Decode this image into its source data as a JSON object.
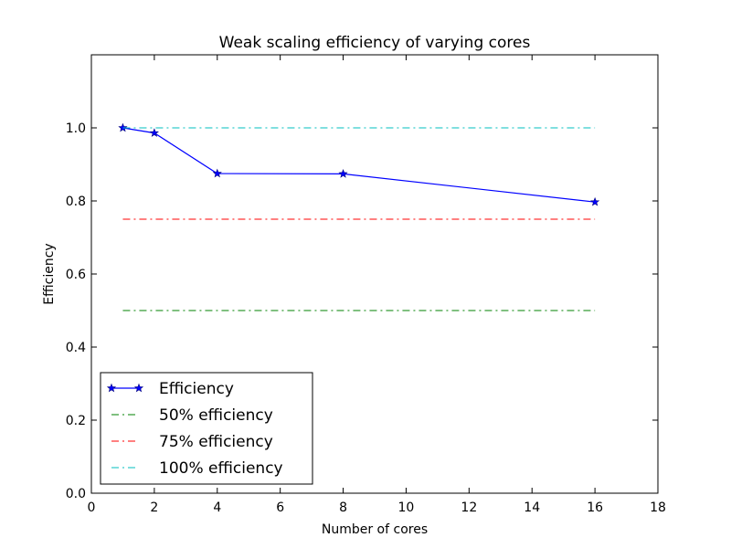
{
  "chart_data": {
    "type": "line",
    "title": "Weak scaling efficiency of varying cores",
    "xlabel": "Number of cores",
    "ylabel": "Efficiency",
    "xlim": [
      0,
      18
    ],
    "ylim": [
      0,
      1.2
    ],
    "x_ticks": [
      0,
      2,
      4,
      6,
      8,
      10,
      12,
      14,
      16,
      18
    ],
    "x_tick_labels": [
      "0",
      "2",
      "4",
      "6",
      "8",
      "10",
      "12",
      "14",
      "16",
      "18"
    ],
    "y_ticks": [
      0,
      0.2,
      0.4,
      0.6,
      0.8,
      1.0
    ],
    "y_tick_labels": [
      "0.0",
      "0.2",
      "0.4",
      "0.6",
      "0.8",
      "1.0"
    ],
    "grid": false,
    "legend_position": "lower-left",
    "series": [
      {
        "name": "Efficiency",
        "style": "solid-star",
        "color": "#0000ff",
        "x": [
          1,
          2,
          4,
          8,
          16
        ],
        "y": [
          1.0,
          0.986,
          0.875,
          0.874,
          0.797
        ]
      },
      {
        "name": "50% efficiency",
        "style": "dashdot",
        "color": "#008000",
        "x": [
          1,
          16
        ],
        "y": [
          0.5,
          0.5
        ]
      },
      {
        "name": "75% efficiency",
        "style": "dashdot",
        "color": "#ff0000",
        "x": [
          1,
          16
        ],
        "y": [
          0.75,
          0.75
        ]
      },
      {
        "name": "100% efficiency",
        "style": "dashdot",
        "color": "#00bfbf",
        "x": [
          1,
          16
        ],
        "y": [
          1.0,
          1.0
        ]
      }
    ]
  }
}
